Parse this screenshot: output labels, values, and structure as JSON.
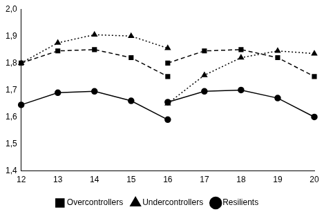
{
  "chart_data": {
    "type": "line",
    "x": [
      12,
      13,
      14,
      15,
      16,
      16,
      16,
      17,
      18,
      19,
      20
    ],
    "series": [
      {
        "name": "Overcontrollers",
        "color": "#000000",
        "marker": "square",
        "line_style": "dashed",
        "values": [
          1.8,
          1.845,
          1.85,
          1.82,
          1.75,
          null,
          1.8,
          1.845,
          1.85,
          1.82,
          1.75
        ]
      },
      {
        "name": "Undercontrollers",
        "color": "#000000",
        "marker": "triangle",
        "line_style": "dotted",
        "values": [
          1.8,
          1.875,
          1.905,
          1.9,
          1.855,
          null,
          1.65,
          1.755,
          1.82,
          1.845,
          1.835
        ]
      },
      {
        "name": "Resilients",
        "color": "#000000",
        "marker": "circle",
        "line_style": "solid",
        "values": [
          1.645,
          1.69,
          1.695,
          1.66,
          1.59,
          null,
          1.655,
          1.695,
          1.7,
          1.67,
          1.6
        ]
      }
    ],
    "xlim": [
      12,
      20
    ],
    "xticks": [
      12,
      13,
      14,
      15,
      16,
      17,
      18,
      19,
      20
    ],
    "ylim": [
      1.4,
      2.0
    ],
    "yticks": [
      {
        "value": 1.4,
        "label": "1,4"
      },
      {
        "value": 1.5,
        "label": "1,5"
      },
      {
        "value": 1.6,
        "label": "1,6"
      },
      {
        "value": 1.7,
        "label": "1,7"
      },
      {
        "value": 1.8,
        "label": "1,8"
      },
      {
        "value": 1.9,
        "label": "1,9"
      },
      {
        "value": 2.0,
        "label": "2,0"
      }
    ],
    "grid": false,
    "legend": "bottom"
  }
}
